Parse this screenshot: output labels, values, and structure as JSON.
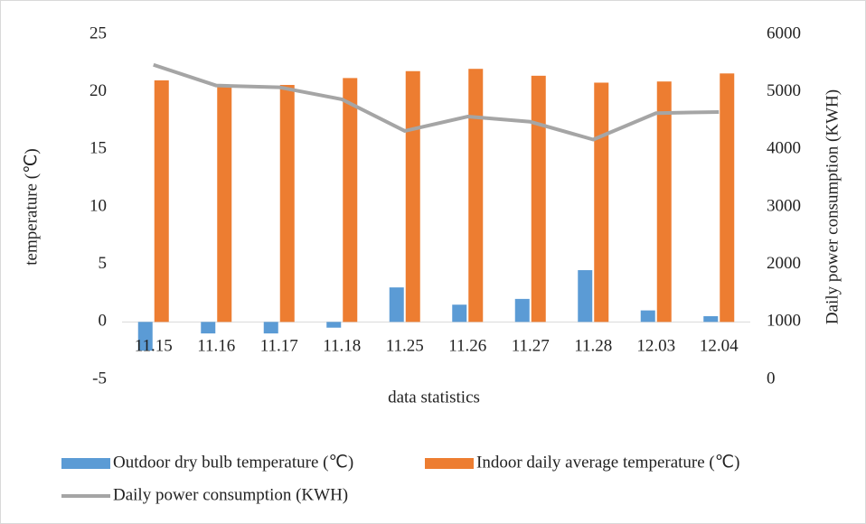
{
  "chart_data": {
    "type": "bar-line",
    "categories": [
      "11.15",
      "11.16",
      "11.17",
      "11.18",
      "11.25",
      "11.26",
      "11.27",
      "11.28",
      "12.03",
      "12.04"
    ],
    "x_label": "data statistics",
    "y_label": "temperature (℃)",
    "y2_label": "Daily power consumption (KWH)",
    "ylim": [
      -5,
      25
    ],
    "yticks": [
      -5,
      0,
      5,
      10,
      15,
      20,
      25
    ],
    "y2lim": [
      0,
      6000
    ],
    "y2ticks": [
      0,
      1000,
      2000,
      3000,
      4000,
      5000,
      6000
    ],
    "grid": false,
    "legend": "bottom",
    "series": [
      {
        "name": "Outdoor dry bulb temperature (℃)",
        "type": "bar",
        "color": "#5b9bd5",
        "values": [
          -2.5,
          -1,
          -1,
          -0.5,
          3,
          1.5,
          2,
          4.5,
          1,
          0.5
        ]
      },
      {
        "name": "Indoor daily average temperature (℃)",
        "type": "bar",
        "color": "#ed7d31",
        "values": [
          21,
          20.6,
          20.6,
          21.2,
          21.8,
          22,
          21.4,
          20.8,
          20.9,
          21.6
        ]
      },
      {
        "name": "Daily power consumption (KWH)",
        "type": "line",
        "axis": "y2",
        "color": "#a5a5a5",
        "values": [
          5470,
          5110,
          5080,
          4870,
          4320,
          4570,
          4480,
          4170,
          4630,
          4650
        ]
      }
    ]
  }
}
